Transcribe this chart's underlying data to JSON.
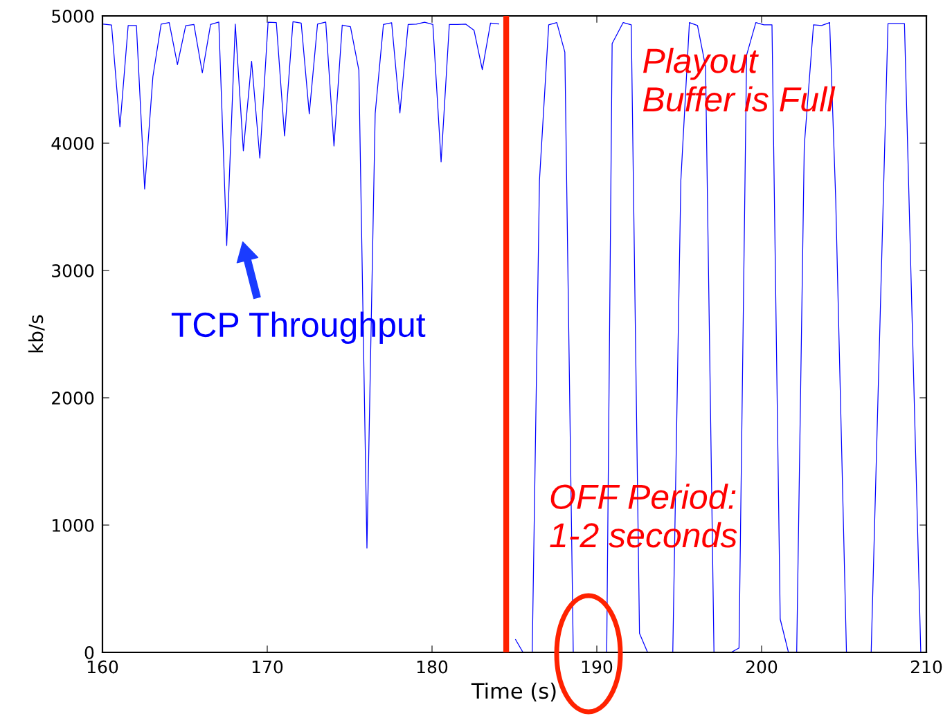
{
  "chart_data": {
    "type": "line",
    "xlabel": "Time (s)",
    "ylabel": "kb/s",
    "xlim": [
      160,
      210
    ],
    "ylim": [
      0,
      5000
    ],
    "xticks": [
      160,
      170,
      180,
      190,
      200,
      210
    ],
    "yticks": [
      0,
      1000,
      2000,
      3000,
      4000,
      5000
    ],
    "grid": false,
    "legend": false,
    "marker": "none",
    "line_style": "solid",
    "series": [
      {
        "color": "#0000ff",
        "x": [
          160.07,
          160.55,
          161.06,
          161.56,
          162.06,
          162.56,
          163.06,
          163.56,
          164.05,
          164.55,
          165.05,
          165.55,
          166.06,
          166.56,
          167.06,
          167.54,
          168.06,
          168.55,
          169.05,
          169.55,
          170.05,
          170.55,
          171.05,
          171.56,
          172.06,
          172.55,
          173.05,
          173.55,
          174.05,
          174.55,
          175.05,
          175.56,
          176.05,
          176.55,
          177.05,
          177.55,
          178.05,
          178.55,
          179.05,
          179.55,
          180.05,
          180.55,
          181.05,
          181.55,
          182.05,
          182.55,
          183.05,
          183.55,
          184.05,
          184.55,
          185.07,
          185.52,
          186.08,
          186.52,
          187.08,
          187.57,
          188.06,
          188.57,
          189.07,
          189.57,
          190.07,
          190.6,
          190.93,
          191.6,
          192.09,
          192.59,
          193.08,
          193.6,
          194.1,
          194.61,
          195.1,
          195.62,
          196.11,
          196.6,
          197.11,
          197.6,
          198.15,
          198.63,
          199.09,
          199.65,
          200.14,
          200.63,
          201.13,
          201.63,
          202.13,
          202.59,
          203.15,
          203.64,
          204.13,
          204.5,
          205.15,
          205.65,
          206.15,
          206.65,
          207.67,
          208.67,
          209.66
        ],
        "values": [
          4935,
          4929,
          4128,
          4925,
          4925,
          3640,
          4523,
          4935,
          4948,
          4617,
          4923,
          4933,
          4553,
          4933,
          4952,
          3196,
          4935,
          3941,
          4644,
          3883,
          4950,
          4948,
          4057,
          4954,
          4944,
          4230,
          4935,
          4952,
          3978,
          4927,
          4915,
          4573,
          820,
          4232,
          4933,
          4946,
          4238,
          4933,
          4935,
          4950,
          4933,
          3854,
          4933,
          4933,
          4935,
          4887,
          4578,
          4944,
          4937,
          null,
          100,
          0,
          0,
          3708,
          4930,
          4948,
          4715,
          0,
          0,
          0,
          0,
          0,
          4783,
          4948,
          4930,
          150,
          0,
          0,
          0,
          0,
          3708,
          4948,
          4925,
          4600,
          0,
          0,
          0,
          34,
          4692,
          4948,
          4930,
          4930,
          261,
          0,
          0,
          3980,
          4930,
          4925,
          4948,
          3550,
          0,
          0,
          0,
          0,
          4940,
          4940,
          0
        ]
      }
    ],
    "ref_lines": [
      {
        "axis": "x",
        "value": 184.5,
        "color": "#ff2200",
        "line_style": "solid"
      }
    ],
    "annotations": [
      "Playout\nBuffer is Full",
      "OFF Period:\n1-2 seconds",
      "TCP Throughput"
    ]
  }
}
